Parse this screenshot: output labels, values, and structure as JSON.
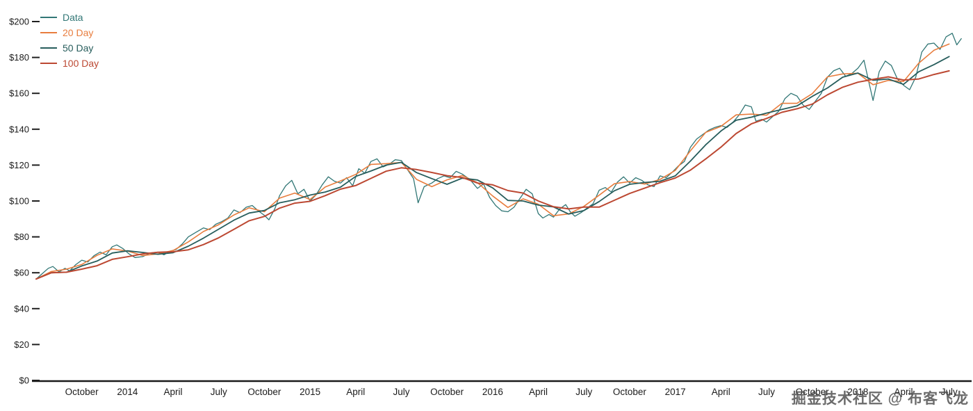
{
  "watermark": {
    "text": "掘金技术社区 @ 布客飞龙"
  },
  "chart_data": {
    "type": "line",
    "title": "",
    "xlabel": "",
    "ylabel": "",
    "grid": false,
    "legend_position": "top-left",
    "x_unit": "months-since-2013-07",
    "x_domain": [
      0,
      61.2
    ],
    "y_domain": [
      0,
      200
    ],
    "y_ticks": {
      "values": [
        0,
        20,
        40,
        60,
        80,
        100,
        120,
        140,
        160,
        180,
        200
      ],
      "labels": [
        "$0",
        "$20",
        "$40",
        "$60",
        "$80",
        "$100",
        "$120",
        "$140",
        "$160",
        "$180",
        "$200"
      ]
    },
    "x_ticks": {
      "values": [
        3,
        6,
        9,
        12,
        15,
        18,
        21,
        24,
        27,
        30,
        33,
        36,
        39,
        42,
        45,
        48,
        51,
        54,
        57,
        60
      ],
      "labels": [
        "October",
        "2014",
        "April",
        "July",
        "October",
        "2015",
        "April",
        "July",
        "October",
        "2016",
        "April",
        "July",
        "October",
        "2017",
        "April",
        "July",
        "October",
        "2018",
        "April",
        "July"
      ]
    },
    "series": [
      {
        "name": "Data",
        "color": "#327776",
        "width": 1.3,
        "points": [
          [
            0,
            56.5
          ],
          [
            0.4,
            59.5
          ],
          [
            0.8,
            62.5
          ],
          [
            1.1,
            63.5
          ],
          [
            1.5,
            60.5
          ],
          [
            1.9,
            62.5
          ],
          [
            2.2,
            61.0
          ],
          [
            2.6,
            64.5
          ],
          [
            3.0,
            67.0
          ],
          [
            3.4,
            66.0
          ],
          [
            3.8,
            69.5
          ],
          [
            4.2,
            71.5
          ],
          [
            4.6,
            70.0
          ],
          [
            5.0,
            74.5
          ],
          [
            5.3,
            75.5
          ],
          [
            5.7,
            73.5
          ],
          [
            6.1,
            70.5
          ],
          [
            6.5,
            68.5
          ],
          [
            7.0,
            69.0
          ],
          [
            7.5,
            71.0
          ],
          [
            8.0,
            71.5
          ],
          [
            8.4,
            70.0
          ],
          [
            8.8,
            72.0
          ],
          [
            9.2,
            73.0
          ],
          [
            9.6,
            76.0
          ],
          [
            10.0,
            80.0
          ],
          [
            10.5,
            82.5
          ],
          [
            11.0,
            85.0
          ],
          [
            11.4,
            84.0
          ],
          [
            11.8,
            87.0
          ],
          [
            12.2,
            88.5
          ],
          [
            12.6,
            90.5
          ],
          [
            13.0,
            95.0
          ],
          [
            13.4,
            93.5
          ],
          [
            13.8,
            96.5
          ],
          [
            14.2,
            97.5
          ],
          [
            14.6,
            94.5
          ],
          [
            15.0,
            92.0
          ],
          [
            15.3,
            89.5
          ],
          [
            15.7,
            96.0
          ],
          [
            16.0,
            103.0
          ],
          [
            16.4,
            108.5
          ],
          [
            16.8,
            111.5
          ],
          [
            17.2,
            104.0
          ],
          [
            17.6,
            106.5
          ],
          [
            18.0,
            100.0
          ],
          [
            18.4,
            103.5
          ],
          [
            18.8,
            109.0
          ],
          [
            19.2,
            113.5
          ],
          [
            19.6,
            111.0
          ],
          [
            20.0,
            110.0
          ],
          [
            20.4,
            113.0
          ],
          [
            20.8,
            108.5
          ],
          [
            21.2,
            118.0
          ],
          [
            21.6,
            115.5
          ],
          [
            22.0,
            122.0
          ],
          [
            22.4,
            123.5
          ],
          [
            22.8,
            119.0
          ],
          [
            23.2,
            120.5
          ],
          [
            23.6,
            123.0
          ],
          [
            24.0,
            122.5
          ],
          [
            24.4,
            117.5
          ],
          [
            24.8,
            112.5
          ],
          [
            25.1,
            99.0
          ],
          [
            25.5,
            108.0
          ],
          [
            26.0,
            110.0
          ],
          [
            26.4,
            112.5
          ],
          [
            26.8,
            114.0
          ],
          [
            27.2,
            113.0
          ],
          [
            27.6,
            116.5
          ],
          [
            28.0,
            115.0
          ],
          [
            28.5,
            112.0
          ],
          [
            29.0,
            107.0
          ],
          [
            29.4,
            109.5
          ],
          [
            29.8,
            102.0
          ],
          [
            30.2,
            97.5
          ],
          [
            30.6,
            94.5
          ],
          [
            31.0,
            94.0
          ],
          [
            31.4,
            96.5
          ],
          [
            31.8,
            101.5
          ],
          [
            32.2,
            106.5
          ],
          [
            32.6,
            104.0
          ],
          [
            33.0,
            93.0
          ],
          [
            33.3,
            90.5
          ],
          [
            33.7,
            92.5
          ],
          [
            34.0,
            91.0
          ],
          [
            34.4,
            95.5
          ],
          [
            34.8,
            98.0
          ],
          [
            35.1,
            94.0
          ],
          [
            35.4,
            91.5
          ],
          [
            35.8,
            93.5
          ],
          [
            36.2,
            96.0
          ],
          [
            36.6,
            98.5
          ],
          [
            37.0,
            106.0
          ],
          [
            37.4,
            107.5
          ],
          [
            37.8,
            105.0
          ],
          [
            38.2,
            110.5
          ],
          [
            38.6,
            113.5
          ],
          [
            39.0,
            110.0
          ],
          [
            39.4,
            113.0
          ],
          [
            39.8,
            111.5
          ],
          [
            40.2,
            109.0
          ],
          [
            40.6,
            108.0
          ],
          [
            41.0,
            114.0
          ],
          [
            41.4,
            113.0
          ],
          [
            41.8,
            116.0
          ],
          [
            42.2,
            119.5
          ],
          [
            42.6,
            122.0
          ],
          [
            43.0,
            130.0
          ],
          [
            43.4,
            134.5
          ],
          [
            43.8,
            137.0
          ],
          [
            44.2,
            139.5
          ],
          [
            44.6,
            141.0
          ],
          [
            45.0,
            142.0
          ],
          [
            45.4,
            141.0
          ],
          [
            45.8,
            144.0
          ],
          [
            46.2,
            148.0
          ],
          [
            46.6,
            153.5
          ],
          [
            47.0,
            152.5
          ],
          [
            47.3,
            144.5
          ],
          [
            47.7,
            145.5
          ],
          [
            48.0,
            144.0
          ],
          [
            48.4,
            147.0
          ],
          [
            48.8,
            150.0
          ],
          [
            49.2,
            157.0
          ],
          [
            49.6,
            160.0
          ],
          [
            50.0,
            158.5
          ],
          [
            50.4,
            153.5
          ],
          [
            50.8,
            151.0
          ],
          [
            51.2,
            155.5
          ],
          [
            51.6,
            160.0
          ],
          [
            52.0,
            169.0
          ],
          [
            52.4,
            172.5
          ],
          [
            52.8,
            174.0
          ],
          [
            53.2,
            169.5
          ],
          [
            53.6,
            171.0
          ],
          [
            54.0,
            174.0
          ],
          [
            54.4,
            178.5
          ],
          [
            54.7,
            167.0
          ],
          [
            55.0,
            156.0
          ],
          [
            55.4,
            172.0
          ],
          [
            55.8,
            178.0
          ],
          [
            56.2,
            175.5
          ],
          [
            56.6,
            168.0
          ],
          [
            57.0,
            164.5
          ],
          [
            57.4,
            162.0
          ],
          [
            57.8,
            169.0
          ],
          [
            58.2,
            183.0
          ],
          [
            58.6,
            187.5
          ],
          [
            59.0,
            188.0
          ],
          [
            59.4,
            184.5
          ],
          [
            59.8,
            191.5
          ],
          [
            60.2,
            193.5
          ],
          [
            60.5,
            187.0
          ],
          [
            60.8,
            190.5
          ]
        ]
      },
      {
        "name": "20 Day",
        "color": "#e87d3e",
        "width": 1.6,
        "x_start": 0,
        "x_step": 1,
        "values": [
          56.5,
          60.7,
          62.0,
          64.6,
          69.7,
          73.3,
          72.1,
          69.6,
          70.5,
          72.4,
          77.2,
          83.0,
          86.8,
          92.2,
          96.2,
          94.0,
          101.6,
          104.4,
          100.8,
          107.8,
          111.2,
          114.8,
          120.4,
          120.8,
          121.5,
          112.0,
          108.0,
          111.8,
          114.2,
          110.2,
          102.8,
          96.4,
          101.2,
          98.2,
          91.8,
          92.8,
          97.0,
          103.2,
          109.6,
          110.8,
          109.4,
          112.0,
          117.0,
          128.0,
          138.2,
          141.6,
          148.0,
          148.4,
          147.8,
          154.4,
          154.4,
          159.8,
          169.2,
          170.8,
          171.2,
          164.8,
          167.2,
          166.6,
          176.8,
          184.0,
          187.5
        ]
      },
      {
        "name": "50 Day",
        "color": "#275d5c",
        "width": 1.8,
        "x_start": 0,
        "x_step": 1,
        "values": [
          56.5,
          60.0,
          60.3,
          63.8,
          66.5,
          71.0,
          72.2,
          71.3,
          70.3,
          71.2,
          74.8,
          79.3,
          84.3,
          89.3,
          93.3,
          94.7,
          99.0,
          100.7,
          103.3,
          105.0,
          107.7,
          113.7,
          116.7,
          120.0,
          121.5,
          115.8,
          112.5,
          109.3,
          112.7,
          111.7,
          107.3,
          100.3,
          100.0,
          97.7,
          96.7,
          92.7,
          94.7,
          99.7,
          105.7,
          109.3,
          110.3,
          111.0,
          114.0,
          122.3,
          131.3,
          139.0,
          145.0,
          146.7,
          149.0,
          151.0,
          153.0,
          158.3,
          163.0,
          169.0,
          171.3,
          167.3,
          168.0,
          165.0,
          172.0,
          176.0,
          180.5
        ]
      },
      {
        "name": "100 Day",
        "color": "#bc4832",
        "width": 2.0,
        "x_start": 0,
        "x_step": 1,
        "values": [
          56.5,
          60.0,
          60.3,
          62.0,
          63.9,
          67.5,
          68.9,
          70.5,
          71.4,
          71.7,
          72.8,
          75.7,
          79.5,
          84.2,
          89.0,
          91.4,
          96.0,
          98.8,
          99.8,
          103.0,
          106.6,
          108.6,
          112.6,
          116.6,
          118.5,
          117.5,
          115.9,
          114.1,
          113.1,
          110.0,
          109.0,
          105.8,
          104.4,
          100.0,
          96.8,
          95.6,
          96.6,
          96.6,
          100.4,
          104.2,
          107.2,
          110.2,
          112.8,
          117.2,
          123.4,
          130.0,
          137.6,
          143.0,
          146.0,
          149.4,
          151.4,
          154.0,
          159.2,
          163.4,
          166.2,
          167.8,
          169.2,
          167.4,
          168.0,
          170.5,
          172.5
        ]
      }
    ]
  }
}
